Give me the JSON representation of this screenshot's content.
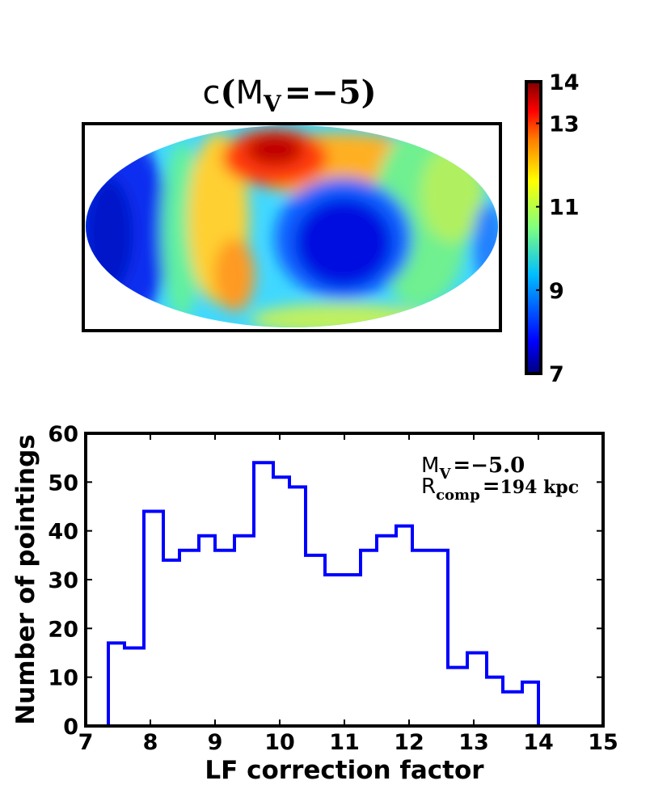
{
  "chart_data": [
    {
      "type": "heatmap",
      "title_parts": {
        "c": "c",
        "paren_open": "(",
        "M": "M",
        "sub": "V",
        "eq": "=",
        "val": "−5",
        "paren_close": ")"
      },
      "projection": "all-sky (Mollweide-like ellipse)",
      "colorbar": {
        "min": 7,
        "max": 14,
        "ticks": [
          "14",
          "13",
          "11",
          "9",
          "7"
        ],
        "tick_values": [
          14,
          13,
          11,
          9,
          7
        ],
        "colormap_stops": [
          "#00007f",
          "#0000ff",
          "#007fff",
          "#00ffff",
          "#7fff7f",
          "#ffff00",
          "#ff7f00",
          "#ff0000",
          "#7f0000"
        ]
      },
      "features": [
        {
          "name": "high-region-north",
          "value": 13.8
        },
        {
          "name": "low-region-center",
          "value": 7.5
        },
        {
          "name": "low-region-left",
          "value": 7.8
        }
      ]
    },
    {
      "type": "histogram",
      "xlabel": "LF correction factor",
      "ylabel": "Number of pointings",
      "xlim": [
        7,
        15
      ],
      "ylim": [
        0,
        60
      ],
      "xticks": [
        "7",
        "8",
        "9",
        "10",
        "11",
        "12",
        "13",
        "14",
        "15"
      ],
      "yticks": [
        "0",
        "10",
        "20",
        "30",
        "40",
        "50",
        "60"
      ],
      "bin_edges": [
        7.35,
        7.6,
        7.9,
        8.2,
        8.45,
        8.75,
        9.0,
        9.3,
        9.6,
        9.9,
        10.15,
        10.4,
        10.7,
        10.95,
        11.25,
        11.5,
        11.8,
        12.05,
        12.35,
        12.6,
        12.9,
        13.2,
        13.45,
        13.75,
        14.0
      ],
      "counts": [
        17,
        16,
        44,
        34,
        36,
        39,
        36,
        39,
        54,
        51,
        49,
        35,
        31,
        31,
        36,
        39,
        41,
        36,
        36,
        12,
        15,
        10,
        7,
        9
      ],
      "annotation": {
        "line1": {
          "M": "M",
          "sub": "V",
          "eq": "=",
          "val": "−5.0"
        },
        "line2": {
          "R": "R",
          "sub": "comp",
          "eq": "=",
          "val": "194 kpc"
        }
      },
      "color": "#0000ff"
    }
  ]
}
